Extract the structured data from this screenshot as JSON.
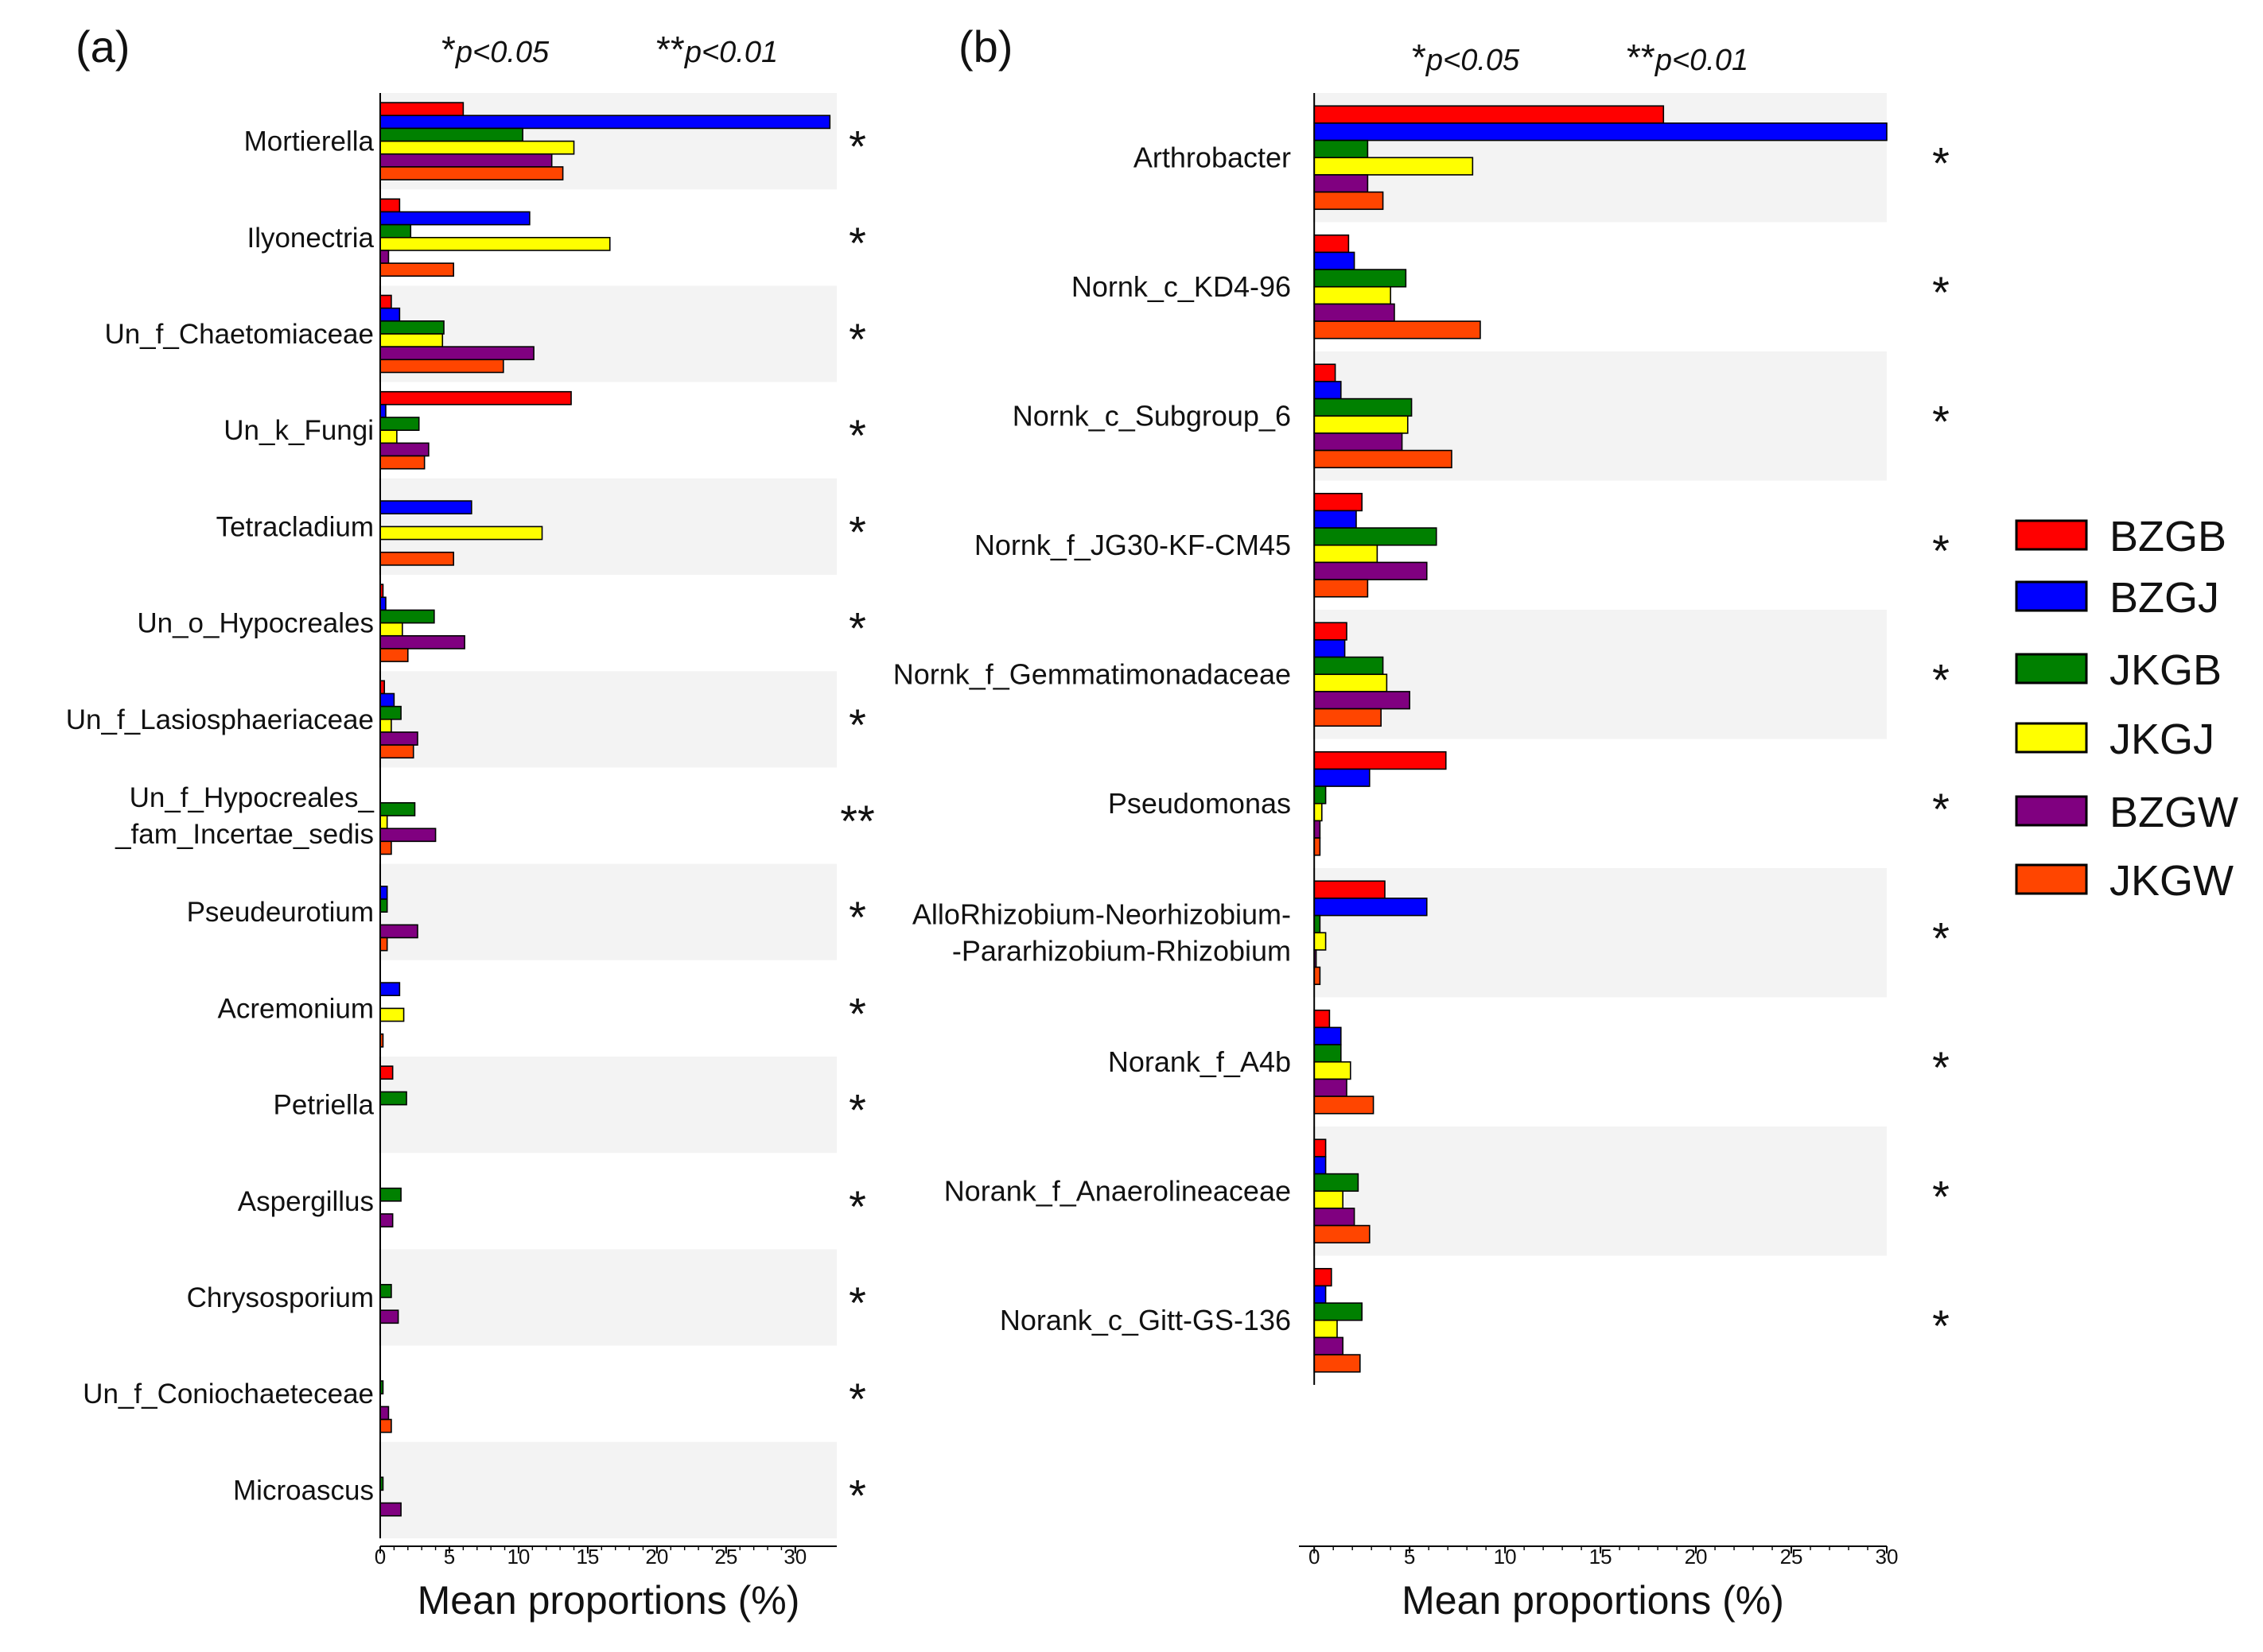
{
  "figure": {
    "legend_title": "",
    "group_order": [
      "BZGB",
      "BZGJ",
      "JKGB",
      "JKGJ",
      "BZGW",
      "JKGW"
    ],
    "colors": {
      "BZGB": "#ff0000",
      "BZGJ": "#0000ff",
      "JKGB": "#008000",
      "JKGJ": "#ffff00",
      "BZGW": "#800080",
      "JKGW": "#ff4500"
    },
    "band_color": "#f3f3f3"
  },
  "chart_data": [
    {
      "type": "bar",
      "orientation": "horizontal",
      "panel_label": "(a)",
      "sig_legend": {
        "single": "*",
        "single_text": "p<0.05",
        "double": "**",
        "double_text": "p<0.01"
      },
      "xlabel": "Mean proportions (%)",
      "xlim": [
        0,
        33
      ],
      "xticks": [
        0,
        5,
        10,
        15,
        20,
        25,
        30
      ],
      "categories": [
        [
          "Mortierella"
        ],
        [
          "Ilyonectria"
        ],
        [
          "Un_f_Chaetomiaceae"
        ],
        [
          "Un_k_Fungi"
        ],
        [
          "Tetracladium"
        ],
        [
          "Un_o_Hypocreales"
        ],
        [
          "Un_f_Lasiosphaeriaceae"
        ],
        [
          "Un_f_Hypocreales_",
          "_fam_Incertae_sedis"
        ],
        [
          "Pseudeurotium"
        ],
        [
          "Acremonium"
        ],
        [
          "Petriella"
        ],
        [
          "Aspergillus"
        ],
        [
          "Chrysosporium"
        ],
        [
          "Un_f_Coniochaeteceae"
        ],
        [
          "Microascus"
        ]
      ],
      "significance": [
        "*",
        "*",
        "*",
        "*",
        "*",
        "*",
        "*",
        "**",
        "*",
        "*",
        "*",
        "*",
        "*",
        "*",
        "*"
      ],
      "series": [
        {
          "name": "BZGB",
          "values": [
            6.0,
            1.4,
            0.8,
            13.8,
            0,
            0.2,
            0.3,
            0,
            0,
            0,
            0.9,
            0,
            0,
            0,
            0
          ]
        },
        {
          "name": "BZGJ",
          "values": [
            32.5,
            10.8,
            1.4,
            0.4,
            6.6,
            0.4,
            1.0,
            0,
            0.5,
            1.4,
            0,
            0,
            0,
            0,
            0
          ]
        },
        {
          "name": "JKGB",
          "values": [
            10.3,
            2.2,
            4.6,
            2.8,
            0,
            3.9,
            1.5,
            2.5,
            0.5,
            0,
            1.9,
            1.5,
            0.8,
            0.2,
            0.2
          ]
        },
        {
          "name": "JKGJ",
          "values": [
            14.0,
            16.6,
            4.5,
            1.2,
            11.7,
            1.6,
            0.8,
            0.5,
            0,
            1.7,
            0,
            0,
            0,
            0,
            0
          ]
        },
        {
          "name": "BZGW",
          "values": [
            12.4,
            0.6,
            11.1,
            3.5,
            0,
            6.1,
            2.7,
            4.0,
            2.7,
            0,
            0,
            0.9,
            1.3,
            0.6,
            1.5
          ]
        },
        {
          "name": "JKGW",
          "values": [
            13.2,
            5.3,
            8.9,
            3.2,
            5.3,
            2.0,
            2.4,
            0.8,
            0.5,
            0.2,
            0,
            0,
            0,
            0.8,
            0
          ]
        }
      ]
    },
    {
      "type": "bar",
      "orientation": "horizontal",
      "panel_label": "(b)",
      "sig_legend": {
        "single": "*",
        "single_text": "p<0.05",
        "double": "**",
        "double_text": "p<0.01"
      },
      "xlabel": "Mean proportions (%)",
      "xlim": [
        -0.8,
        30
      ],
      "xticks": [
        0,
        5,
        10,
        15,
        20,
        25,
        30
      ],
      "categories": [
        [
          "Arthrobacter"
        ],
        [
          "Nornk_c_KD4-96"
        ],
        [
          "Nornk_c_Subgroup_6"
        ],
        [
          "Nornk_f_JG30-KF-CM45"
        ],
        [
          "Nornk_f_Gemmatimonadaceae"
        ],
        [
          "Pseudomonas"
        ],
        [
          "AlloRhizobium-Neorhizobium-",
          "-Pararhizobium-Rhizobium"
        ],
        [
          "Norank_f_A4b"
        ],
        [
          "Norank_f_Anaerolineaceae"
        ],
        [
          "Norank_c_Gitt-GS-136"
        ]
      ],
      "significance": [
        "*",
        "*",
        "*",
        "*",
        "*",
        "*",
        "*",
        "*",
        "*",
        "*"
      ],
      "series": [
        {
          "name": "BZGB",
          "values": [
            18.3,
            1.8,
            1.1,
            2.5,
            1.7,
            6.9,
            3.7,
            0.8,
            0.6,
            0.9
          ]
        },
        {
          "name": "BZGJ",
          "values": [
            30.0,
            2.1,
            1.4,
            2.2,
            1.6,
            2.9,
            5.9,
            1.4,
            0.6,
            0.6
          ]
        },
        {
          "name": "JKGB",
          "values": [
            2.8,
            4.8,
            5.1,
            6.4,
            3.6,
            0.6,
            0.3,
            1.4,
            2.3,
            2.5
          ]
        },
        {
          "name": "JKGJ",
          "values": [
            8.3,
            4.0,
            4.9,
            3.3,
            3.8,
            0.4,
            0.6,
            1.9,
            1.5,
            1.2
          ]
        },
        {
          "name": "BZGW",
          "values": [
            2.8,
            4.2,
            4.6,
            5.9,
            5.0,
            0.3,
            0.1,
            1.7,
            2.1,
            1.5
          ]
        },
        {
          "name": "JKGW",
          "values": [
            3.6,
            8.7,
            7.2,
            2.8,
            3.5,
            0.3,
            0.3,
            3.1,
            2.9,
            2.4
          ]
        }
      ]
    }
  ]
}
